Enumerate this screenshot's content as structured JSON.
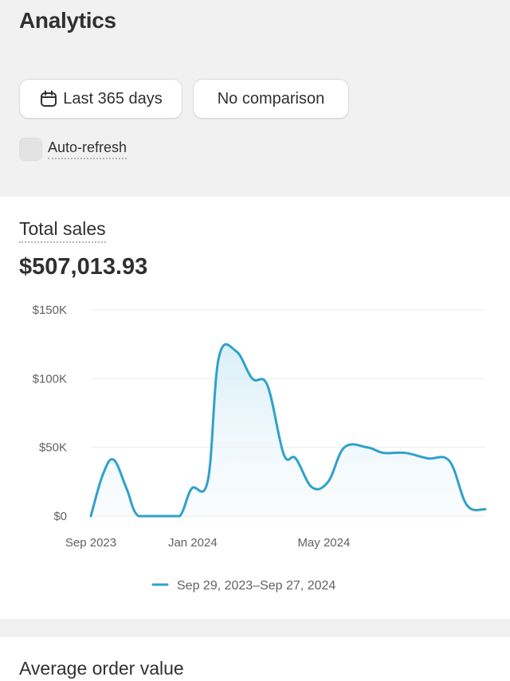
{
  "header": {
    "title": "Analytics",
    "date_range_label": "Last 365 days",
    "comparison_label": "No comparison",
    "auto_refresh_label": "Auto-refresh",
    "auto_refresh_checked": false
  },
  "icons": {
    "date_button": "calendar-icon"
  },
  "total_sales": {
    "title": "Total sales",
    "value": "$507,013.93",
    "legend_label": "Sep 29, 2023–Sep 27, 2024",
    "line_color": "#2fa1cc"
  },
  "average_order": {
    "title": "Average order value"
  },
  "chart_data": {
    "type": "area",
    "title": "",
    "xlabel": "",
    "ylabel": "",
    "ylim": [
      0,
      150000
    ],
    "y_ticks": [
      "$150K",
      "$100K",
      "$50K",
      "$0"
    ],
    "x_ticks": [
      "Sep 2023",
      "Jan 2024",
      "May 2024"
    ],
    "grid": true,
    "legend_position": "bottom",
    "series": [
      {
        "name": "Sep 29, 2023–Sep 27, 2024",
        "x": [
          "2023-09-29",
          "2023-10-10",
          "2023-10-20",
          "2023-11-01",
          "2023-11-12",
          "2023-12-05",
          "2023-12-20",
          "2023-12-31",
          "2024-01-15",
          "2024-01-25",
          "2024-02-10",
          "2024-02-25",
          "2024-03-10",
          "2024-03-25",
          "2024-04-05",
          "2024-04-20",
          "2024-05-05",
          "2024-05-20",
          "2024-06-10",
          "2024-06-25",
          "2024-07-15",
          "2024-08-05",
          "2024-08-25",
          "2024-09-10",
          "2024-09-27"
        ],
        "values": [
          0,
          30000,
          41000,
          20000,
          0,
          0,
          0,
          20000,
          26000,
          115000,
          120000,
          100000,
          95000,
          45000,
          42000,
          21000,
          25000,
          50000,
          50000,
          46000,
          46000,
          42000,
          40000,
          8000,
          5000
        ]
      }
    ]
  }
}
